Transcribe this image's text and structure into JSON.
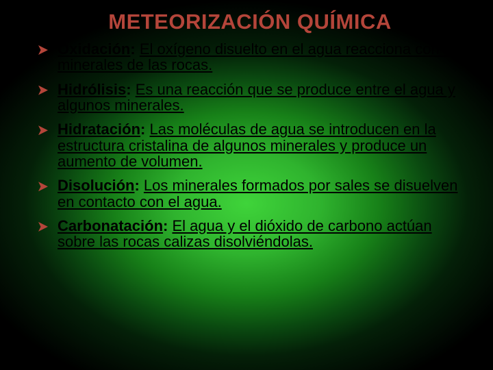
{
  "title": "METEORIZACIÓN QUÍMICA",
  "colors": {
    "title": "#b4453a",
    "bullet": "#b4453a",
    "text": "#000000",
    "gradient_center": "#3fd43a",
    "gradient_mid": "#178018",
    "gradient_outer": "#000000"
  },
  "typography": {
    "family": "Comic Sans MS",
    "title_fontsize_pt": 23,
    "body_fontsize_pt": 17,
    "title_weight": "bold",
    "term_weight": "bold",
    "term_underline": true,
    "desc_underline": true
  },
  "items": [
    {
      "term": "Oxidación",
      "desc": "El oxígeno disuelto en el agua reacciona con los minerales de las rocas."
    },
    {
      "term": "Hidrólisis",
      "desc": "Es una reacción que se produce entre el agua y algunos minerales."
    },
    {
      "term": "Hidratación",
      "desc": "Las moléculas de agua se introducen en la estructura cristalina de algunos minerales y produce un aumento de volumen."
    },
    {
      "term": "Disolución",
      "desc": "Los minerales formados por sales se disuelven en contacto con el agua."
    },
    {
      "term": "Carbonatación",
      "desc": "El agua y el dióxido de carbono actúan sobre las rocas calizas disolviéndolas."
    }
  ]
}
